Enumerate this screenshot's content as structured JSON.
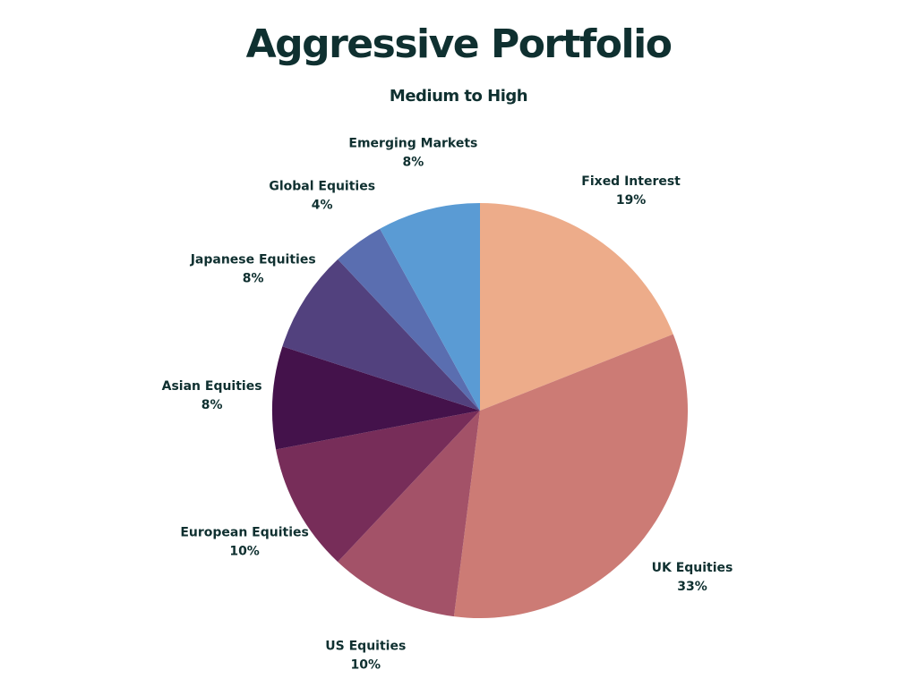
{
  "chart_data": {
    "type": "pie",
    "title": "Aggressive Portfolio",
    "subtitle": "Medium to High",
    "start": "top",
    "direction": "clockwise",
    "slices": [
      {
        "label": "Fixed Interest",
        "value": 19,
        "value_label": "19%",
        "color": "#edac8a"
      },
      {
        "label": "UK Equities",
        "value": 33,
        "value_label": "33%",
        "color": "#cc7b75"
      },
      {
        "label": "US Equities",
        "value": 10,
        "value_label": "10%",
        "color": "#a35268"
      },
      {
        "label": "European Equities",
        "value": 10,
        "value_label": "10%",
        "color": "#772d59"
      },
      {
        "label": "Asian Equities",
        "value": 8,
        "value_label": "8%",
        "color": "#44124b"
      },
      {
        "label": "Japanese Equities",
        "value": 8,
        "value_label": "8%",
        "color": "#52417e"
      },
      {
        "label": "Global Equities",
        "value": 4,
        "value_label": "4%",
        "color": "#5a6eb0"
      },
      {
        "label": "Emerging Markets",
        "value": 8,
        "value_label": "8%",
        "color": "#5a9bd4"
      }
    ]
  }
}
